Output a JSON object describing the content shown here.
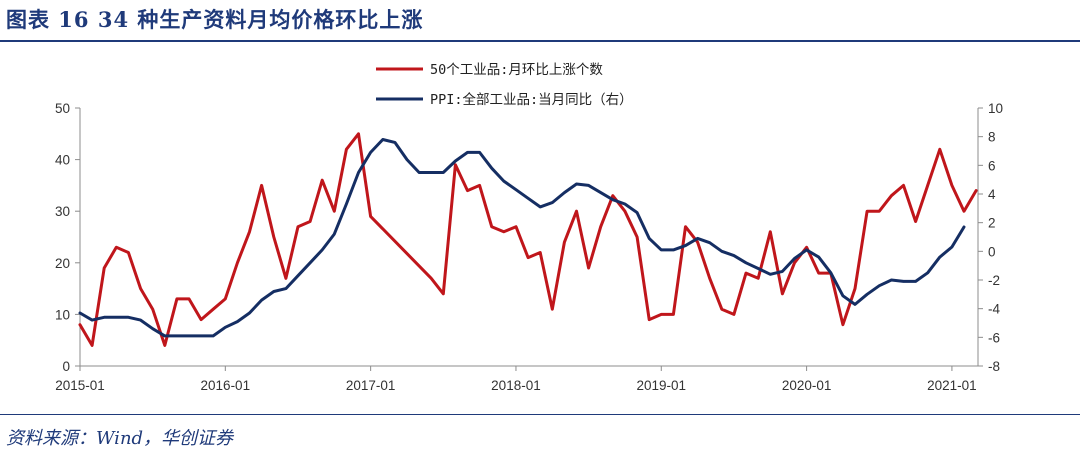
{
  "figure": {
    "title": "图表 16   34 种生产资料月均价格环比上涨",
    "source": "资料来源：Wind，华创证券"
  },
  "colors": {
    "red": "#c0161b",
    "navy": "#152e63",
    "axis": "#8c8c8c",
    "text": "#1f3a7a"
  },
  "chart_data": {
    "type": "line",
    "legend_position": "top-center",
    "grid": false,
    "x_axis": {
      "start": "2015-01",
      "end": "2021-02",
      "tick_labels": [
        "2015-01",
        "2016-01",
        "2017-01",
        "2018-01",
        "2019-01",
        "2020-01",
        "2021-01"
      ]
    },
    "y_left": {
      "range": [
        0,
        50
      ],
      "ticks": [
        "0",
        "10",
        "20",
        "30",
        "40",
        "50"
      ]
    },
    "y_right": {
      "range": [
        -8,
        10
      ],
      "ticks": [
        "-8",
        "-6",
        "-4",
        "-2",
        "0",
        "2",
        "4",
        "6",
        "8",
        "10"
      ]
    },
    "series": [
      {
        "name": "50个工业品:月环比上涨个数",
        "axis": "left",
        "color": "#c0161b",
        "points": [
          [
            "2015-01",
            8
          ],
          [
            "2015-02",
            4
          ],
          [
            "2015-03",
            19
          ],
          [
            "2015-04",
            23
          ],
          [
            "2015-05",
            22
          ],
          [
            "2015-06",
            15
          ],
          [
            "2015-07",
            11
          ],
          [
            "2015-08",
            4
          ],
          [
            "2015-09",
            13
          ],
          [
            "2015-10",
            13
          ],
          [
            "2015-11",
            9
          ],
          [
            "2015-12",
            11
          ],
          [
            "2016-01",
            13
          ],
          [
            "2016-02",
            20
          ],
          [
            "2016-03",
            26
          ],
          [
            "2016-04",
            35
          ],
          [
            "2016-05",
            25
          ],
          [
            "2016-06",
            17
          ],
          [
            "2016-07",
            27
          ],
          [
            "2016-08",
            28
          ],
          [
            "2016-09",
            36
          ],
          [
            "2016-10",
            30
          ],
          [
            "2016-11",
            42
          ],
          [
            "2016-12",
            45
          ],
          [
            "2017-01",
            29
          ],
          [
            "2017-06",
            17
          ],
          [
            "2017-07",
            14
          ],
          [
            "2017-08",
            39
          ],
          [
            "2017-09",
            34
          ],
          [
            "2017-10",
            35
          ],
          [
            "2017-11",
            27
          ],
          [
            "2017-12",
            26
          ],
          [
            "2018-01",
            27
          ],
          [
            "2018-02",
            21
          ],
          [
            "2018-03",
            22
          ],
          [
            "2018-04",
            11
          ],
          [
            "2018-05",
            24
          ],
          [
            "2018-06",
            30
          ],
          [
            "2018-07",
            19
          ],
          [
            "2018-08",
            27
          ],
          [
            "2018-09",
            33
          ],
          [
            "2018-10",
            30
          ],
          [
            "2018-11",
            25
          ],
          [
            "2018-12",
            9
          ],
          [
            "2019-01",
            10
          ],
          [
            "2019-02",
            10
          ],
          [
            "2019-03",
            27
          ],
          [
            "2019-04",
            24
          ],
          [
            "2019-05",
            17
          ],
          [
            "2019-06",
            11
          ],
          [
            "2019-07",
            10
          ],
          [
            "2019-08",
            18
          ],
          [
            "2019-09",
            17
          ],
          [
            "2019-10",
            26
          ],
          [
            "2019-11",
            14
          ],
          [
            "2019-12",
            20
          ],
          [
            "2020-01",
            23
          ],
          [
            "2020-02",
            18
          ],
          [
            "2020-03",
            18
          ],
          [
            "2020-04",
            8
          ],
          [
            "2020-05",
            15
          ],
          [
            "2020-06",
            30
          ],
          [
            "2020-07",
            30
          ],
          [
            "2020-08",
            33
          ],
          [
            "2020-09",
            35
          ],
          [
            "2020-10",
            28
          ],
          [
            "2020-11",
            35
          ],
          [
            "2020-12",
            42
          ],
          [
            "2021-01",
            35
          ],
          [
            "2021-02",
            30
          ],
          [
            "2021-03",
            34
          ]
        ]
      },
      {
        "name": "PPI:全部工业品:当月同比（右）",
        "axis": "right",
        "color": "#152e63",
        "points": [
          [
            "2015-01",
            -4.3
          ],
          [
            "2015-02",
            -4.8
          ],
          [
            "2015-03",
            -4.6
          ],
          [
            "2015-04",
            -4.6
          ],
          [
            "2015-05",
            -4.6
          ],
          [
            "2015-06",
            -4.8
          ],
          [
            "2015-07",
            -5.4
          ],
          [
            "2015-08",
            -5.9
          ],
          [
            "2015-09",
            -5.9
          ],
          [
            "2015-10",
            -5.9
          ],
          [
            "2015-11",
            -5.9
          ],
          [
            "2015-12",
            -5.9
          ],
          [
            "2016-01",
            -5.3
          ],
          [
            "2016-02",
            -4.9
          ],
          [
            "2016-03",
            -4.3
          ],
          [
            "2016-04",
            -3.4
          ],
          [
            "2016-05",
            -2.8
          ],
          [
            "2016-06",
            -2.6
          ],
          [
            "2016-07",
            -1.7
          ],
          [
            "2016-08",
            -0.8
          ],
          [
            "2016-09",
            0.1
          ],
          [
            "2016-10",
            1.2
          ],
          [
            "2016-11",
            3.3
          ],
          [
            "2016-12",
            5.5
          ],
          [
            "2017-01",
            6.9
          ],
          [
            "2017-02",
            7.8
          ],
          [
            "2017-03",
            7.6
          ],
          [
            "2017-04",
            6.4
          ],
          [
            "2017-05",
            5.5
          ],
          [
            "2017-06",
            5.5
          ],
          [
            "2017-07",
            5.5
          ],
          [
            "2017-08",
            6.3
          ],
          [
            "2017-09",
            6.9
          ],
          [
            "2017-10",
            6.9
          ],
          [
            "2017-11",
            5.8
          ],
          [
            "2017-12",
            4.9
          ],
          [
            "2018-01",
            4.3
          ],
          [
            "2018-02",
            3.7
          ],
          [
            "2018-03",
            3.1
          ],
          [
            "2018-04",
            3.4
          ],
          [
            "2018-05",
            4.1
          ],
          [
            "2018-06",
            4.7
          ],
          [
            "2018-07",
            4.6
          ],
          [
            "2018-08",
            4.1
          ],
          [
            "2018-09",
            3.6
          ],
          [
            "2018-10",
            3.3
          ],
          [
            "2018-11",
            2.7
          ],
          [
            "2018-12",
            0.9
          ],
          [
            "2019-01",
            0.1
          ],
          [
            "2019-02",
            0.1
          ],
          [
            "2019-03",
            0.4
          ],
          [
            "2019-04",
            0.9
          ],
          [
            "2019-05",
            0.6
          ],
          [
            "2019-06",
            0.0
          ],
          [
            "2019-07",
            -0.3
          ],
          [
            "2019-08",
            -0.8
          ],
          [
            "2019-09",
            -1.2
          ],
          [
            "2019-10",
            -1.6
          ],
          [
            "2019-11",
            -1.4
          ],
          [
            "2019-12",
            -0.5
          ],
          [
            "2020-01",
            0.1
          ],
          [
            "2020-02",
            -0.4
          ],
          [
            "2020-03",
            -1.5
          ],
          [
            "2020-04",
            -3.1
          ],
          [
            "2020-05",
            -3.7
          ],
          [
            "2020-06",
            -3.0
          ],
          [
            "2020-07",
            -2.4
          ],
          [
            "2020-08",
            -2.0
          ],
          [
            "2020-09",
            -2.1
          ],
          [
            "2020-10",
            -2.1
          ],
          [
            "2020-11",
            -1.5
          ],
          [
            "2020-12",
            -0.4
          ],
          [
            "2021-01",
            0.3
          ],
          [
            "2021-02",
            1.7
          ]
        ]
      }
    ]
  }
}
